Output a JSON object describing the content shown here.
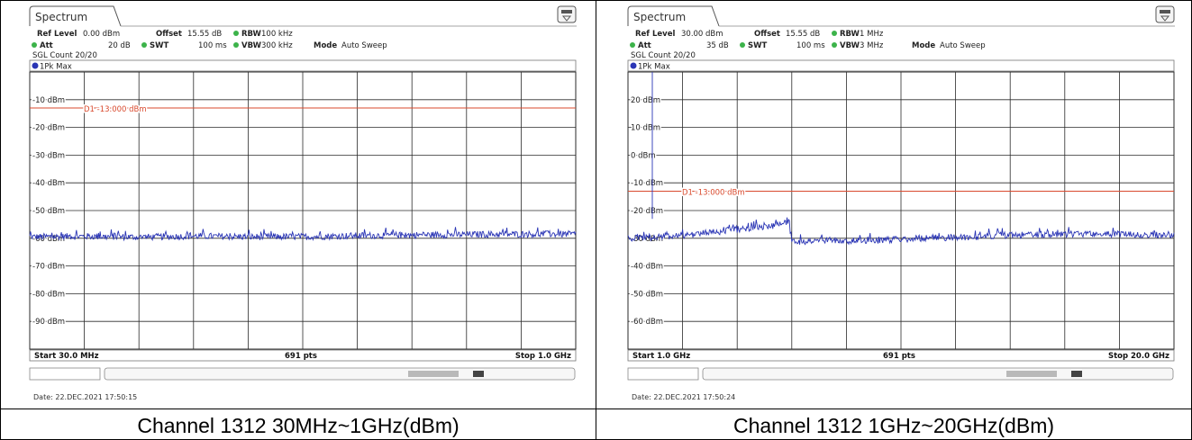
{
  "panels": [
    {
      "tab_label": "Spectrum",
      "ref_level": {
        "label": "Ref Level",
        "value": "0.00 dBm"
      },
      "offset": {
        "label": "Offset",
        "value": "15.55 dB"
      },
      "rbw": {
        "label": "RBW",
        "value": "100 kHz"
      },
      "att": {
        "label": "Att",
        "value": "20 dB"
      },
      "swt": {
        "label": "SWT",
        "value": "100 ms"
      },
      "vbw": {
        "label": "VBW",
        "value": "300 kHz"
      },
      "mode": {
        "label": "Mode",
        "value": "Auto Sweep"
      },
      "sgl_count": "SGL Count 20/20",
      "trace_label": "1Pk Max",
      "start_label": "Start 30.0 MHz",
      "pts_label": "691 pts",
      "stop_label": "Stop 1.0 GHz",
      "date_label": "Date: 22.DEC.2021  17:50:15",
      "caption": "Channel 1312 30MHz~1GHz(dBm)"
    },
    {
      "tab_label": "Spectrum",
      "ref_level": {
        "label": "Ref Level",
        "value": "30.00 dBm"
      },
      "offset": {
        "label": "Offset",
        "value": "15.55 dB"
      },
      "rbw": {
        "label": "RBW",
        "value": "1 MHz"
      },
      "att": {
        "label": "Att",
        "value": "35 dB"
      },
      "swt": {
        "label": "SWT",
        "value": "100 ms"
      },
      "vbw": {
        "label": "VBW",
        "value": "3 MHz"
      },
      "mode": {
        "label": "Mode",
        "value": "Auto Sweep"
      },
      "sgl_count": "SGL Count 20/20",
      "trace_label": "1Pk Max",
      "start_label": "Start 1.0 GHz",
      "pts_label": "691 pts",
      "stop_label": "Stop 20.0 GHz",
      "date_label": "Date: 22.DEC.2021  17:50:24",
      "caption": "Channel 1312 1GHz~20GHz(dBm)"
    }
  ],
  "colors": {
    "trace": "#2a35b5",
    "limit_line": "#d94a2e",
    "grid": "#2a2a2a",
    "status_dot": "#3cb34a",
    "trace_dot": "#2a35b5"
  },
  "chart_data": [
    {
      "type": "line",
      "xlim": [
        0.03,
        1.0
      ],
      "x_unit": "GHz",
      "ylim": [
        -100,
        0
      ],
      "y_unit": "dBm",
      "yticks": [
        -10,
        -20,
        -30,
        -40,
        -50,
        -60,
        -70,
        -80,
        -90
      ],
      "ytick_labels": [
        "-10 dBm",
        "-20 dBm",
        "-30 dBm",
        "-40 dBm",
        "-50 dBm",
        "-60 dBm",
        "-70 dBm",
        "-80 dBm",
        "-90 dBm"
      ],
      "grid": true,
      "limit_line": {
        "label": "D1  -13.000 dBm",
        "value": -13.0
      },
      "series": [
        {
          "x": [
            0.03,
            0.13,
            0.23,
            0.33,
            0.43,
            0.53,
            0.63,
            0.73,
            0.83,
            0.93,
            1.0
          ],
          "y": [
            -59.5,
            -59.3,
            -59.6,
            -59.2,
            -59.5,
            -59.4,
            -59.0,
            -58.8,
            -58.6,
            -58.5,
            -58.5
          ]
        }
      ]
    },
    {
      "type": "line",
      "xlim": [
        1.0,
        20.0
      ],
      "x_unit": "GHz",
      "ylim": [
        -70,
        30
      ],
      "y_unit": "dBm",
      "yticks": [
        20,
        10,
        0,
        -10,
        -20,
        -30,
        -40,
        -50,
        -60
      ],
      "ytick_labels": [
        "20 dBm",
        "10 dBm",
        "0 dBm",
        "-10 dBm",
        "-20 dBm",
        "-30 dBm",
        "-40 dBm",
        "-50 dBm",
        "-60 dBm"
      ],
      "grid": true,
      "limit_line": {
        "label": "D1  -13.000 dBm",
        "value": -13.0
      },
      "series": [
        {
          "x": [
            1.0,
            2.0,
            3.0,
            4.0,
            5.0,
            6.0,
            6.6,
            6.7,
            7.0,
            8.0,
            9.0,
            10.0,
            11.0,
            12.0,
            13.0,
            14.0,
            15.0,
            16.0,
            17.0,
            18.0,
            19.0,
            20.0
          ],
          "y": [
            -30.0,
            -29.5,
            -28.8,
            -27.8,
            -26.5,
            -25.5,
            -23.8,
            -31.0,
            -31.2,
            -30.8,
            -31.0,
            -30.6,
            -30.0,
            -29.8,
            -29.5,
            -29.0,
            -28.8,
            -28.5,
            -28.3,
            -28.5,
            -28.6,
            -28.8
          ]
        }
      ]
    }
  ]
}
